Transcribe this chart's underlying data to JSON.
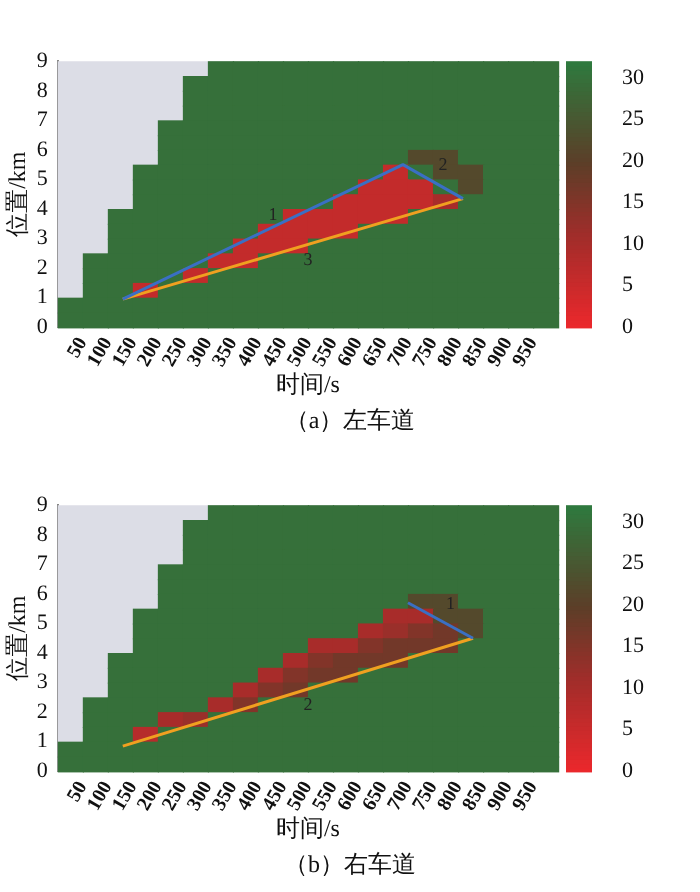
{
  "chart_data": [
    {
      "type": "heatmap",
      "title": "（a）左车道",
      "xlabel": "时间/s",
      "ylabel": "位置/km",
      "xlim": [
        0,
        1000
      ],
      "xticks": [
        50,
        100,
        150,
        200,
        250,
        300,
        350,
        400,
        450,
        500,
        550,
        600,
        650,
        700,
        750,
        800,
        850,
        900,
        950
      ],
      "ylim": [
        0,
        9
      ],
      "yticks": [
        0,
        1,
        2,
        3,
        4,
        5,
        6,
        7,
        8,
        9
      ],
      "clim": [
        0,
        32
      ],
      "cticks": [
        0,
        5,
        10,
        15,
        20,
        25,
        30
      ],
      "cells": [
        [
          null,
          null,
          null,
          null,
          null,
          null,
          30,
          30,
          30,
          30,
          30,
          30,
          30,
          30,
          30,
          30,
          30,
          30,
          30,
          30
        ],
        [
          null,
          null,
          null,
          null,
          null,
          30,
          30,
          30,
          30,
          30,
          30,
          30,
          30,
          30,
          30,
          30,
          30,
          30,
          30,
          30
        ],
        [
          null,
          null,
          null,
          null,
          null,
          30,
          30,
          30,
          30,
          30,
          30,
          30,
          30,
          30,
          30,
          30,
          30,
          30,
          30,
          30
        ],
        [
          null,
          null,
          null,
          null,
          null,
          30,
          30,
          30,
          30,
          30,
          30,
          30,
          30,
          30,
          30,
          30,
          30,
          30,
          30,
          30
        ],
        [
          null,
          null,
          null,
          null,
          30,
          30,
          30,
          30,
          30,
          30,
          30,
          30,
          30,
          30,
          30,
          30,
          30,
          30,
          30,
          30
        ],
        [
          null,
          null,
          null,
          null,
          30,
          30,
          30,
          30,
          30,
          30,
          30,
          30,
          30,
          30,
          30,
          30,
          30,
          30,
          30,
          30
        ],
        [
          null,
          null,
          null,
          null,
          30,
          30,
          30,
          30,
          30,
          30,
          30,
          30,
          30,
          30,
          22,
          22,
          30,
          30,
          30,
          30
        ],
        [
          null,
          null,
          null,
          30,
          30,
          30,
          30,
          30,
          30,
          30,
          30,
          30,
          30,
          6,
          30,
          22,
          22,
          30,
          30,
          30
        ],
        [
          null,
          null,
          null,
          30,
          30,
          30,
          30,
          30,
          30,
          30,
          30,
          30,
          6,
          6,
          6,
          30,
          22,
          30,
          30,
          30
        ],
        [
          null,
          null,
          null,
          30,
          30,
          30,
          30,
          30,
          30,
          30,
          30,
          6,
          6,
          6,
          6,
          10,
          30,
          30,
          30,
          30
        ],
        [
          null,
          null,
          30,
          30,
          30,
          30,
          30,
          30,
          30,
          6,
          6,
          6,
          6,
          6,
          30,
          30,
          30,
          30,
          30,
          30
        ],
        [
          null,
          null,
          30,
          30,
          30,
          30,
          30,
          30,
          6,
          6,
          6,
          6,
          30,
          30,
          30,
          30,
          30,
          30,
          30,
          30
        ],
        [
          null,
          null,
          30,
          30,
          30,
          30,
          30,
          6,
          6,
          6,
          30,
          30,
          30,
          30,
          30,
          30,
          30,
          30,
          30,
          30
        ],
        [
          null,
          30,
          30,
          30,
          30,
          30,
          6,
          6,
          30,
          30,
          30,
          30,
          30,
          30,
          30,
          30,
          30,
          30,
          30,
          30
        ],
        [
          null,
          30,
          30,
          30,
          30,
          6,
          30,
          30,
          30,
          30,
          30,
          30,
          30,
          30,
          30,
          30,
          30,
          30,
          30,
          30
        ],
        [
          null,
          30,
          30,
          6,
          30,
          30,
          30,
          30,
          30,
          30,
          30,
          30,
          30,
          30,
          30,
          30,
          30,
          30,
          30,
          30
        ],
        [
          30,
          30,
          30,
          30,
          30,
          30,
          30,
          30,
          30,
          30,
          30,
          30,
          30,
          30,
          30,
          30,
          30,
          30,
          30,
          30
        ],
        [
          30,
          30,
          30,
          30,
          30,
          30,
          30,
          30,
          30,
          30,
          30,
          30,
          30,
          30,
          30,
          30,
          30,
          30,
          30,
          30
        ]
      ],
      "series": [
        {
          "type": "line",
          "color": "#3a6fc4",
          "x": [
            130,
            690,
            810
          ],
          "values": [
            0.95,
            5.5,
            4.35
          ]
        },
        {
          "type": "line",
          "color": "#f0a020",
          "x": [
            130,
            810
          ],
          "values": [
            0.95,
            4.35
          ]
        }
      ],
      "annotations": [
        {
          "text": "1",
          "x": 410,
          "y": 3.23
        },
        {
          "text": "2",
          "x": 750,
          "y": 4.93
        },
        {
          "text": "3",
          "x": 500,
          "y": 2.8
        }
      ]
    },
    {
      "type": "heatmap",
      "title": "（b）右车道",
      "xlabel": "时间/s",
      "ylabel": "位置/km",
      "xlim": [
        0,
        1000
      ],
      "xticks": [
        50,
        100,
        150,
        200,
        250,
        300,
        350,
        400,
        450,
        500,
        550,
        600,
        650,
        700,
        750,
        800,
        850,
        900,
        950
      ],
      "ylim": [
        0,
        9
      ],
      "yticks": [
        0,
        1,
        2,
        3,
        4,
        5,
        6,
        7,
        8,
        9
      ],
      "clim": [
        0,
        32
      ],
      "cticks": [
        0,
        5,
        10,
        15,
        20,
        25,
        30
      ],
      "cells": [
        [
          null,
          null,
          null,
          null,
          null,
          null,
          30,
          30,
          30,
          30,
          30,
          30,
          30,
          30,
          30,
          30,
          30,
          30,
          30,
          30
        ],
        [
          null,
          null,
          null,
          null,
          null,
          30,
          30,
          30,
          30,
          30,
          30,
          30,
          30,
          30,
          30,
          30,
          30,
          30,
          30,
          30
        ],
        [
          null,
          null,
          null,
          null,
          null,
          30,
          30,
          30,
          30,
          30,
          30,
          30,
          30,
          30,
          30,
          30,
          30,
          30,
          30,
          30
        ],
        [
          null,
          null,
          null,
          null,
          null,
          30,
          30,
          30,
          30,
          30,
          30,
          30,
          30,
          30,
          30,
          30,
          30,
          30,
          30,
          30
        ],
        [
          null,
          null,
          null,
          null,
          30,
          30,
          30,
          30,
          30,
          30,
          30,
          30,
          30,
          30,
          30,
          30,
          30,
          30,
          30,
          30
        ],
        [
          null,
          null,
          null,
          null,
          30,
          30,
          30,
          30,
          30,
          30,
          30,
          30,
          30,
          30,
          30,
          30,
          30,
          30,
          30,
          30
        ],
        [
          null,
          null,
          null,
          null,
          30,
          30,
          30,
          30,
          30,
          30,
          30,
          30,
          30,
          30,
          22,
          22,
          30,
          30,
          30,
          30
        ],
        [
          null,
          null,
          null,
          30,
          30,
          30,
          30,
          30,
          30,
          30,
          30,
          30,
          30,
          10,
          10,
          22,
          22,
          30,
          30,
          30
        ],
        [
          null,
          null,
          null,
          30,
          30,
          30,
          30,
          30,
          30,
          30,
          30,
          30,
          10,
          12,
          15,
          17,
          22,
          30,
          30,
          30
        ],
        [
          null,
          null,
          null,
          30,
          30,
          30,
          30,
          30,
          30,
          30,
          10,
          10,
          15,
          17,
          17,
          17,
          30,
          30,
          30,
          30
        ],
        [
          null,
          null,
          30,
          30,
          30,
          30,
          30,
          30,
          30,
          10,
          15,
          17,
          17,
          17,
          30,
          30,
          30,
          30,
          30,
          30
        ],
        [
          null,
          null,
          30,
          30,
          30,
          30,
          30,
          30,
          10,
          15,
          17,
          17,
          30,
          30,
          30,
          30,
          30,
          30,
          30,
          30
        ],
        [
          null,
          null,
          30,
          30,
          30,
          30,
          30,
          10,
          15,
          17,
          30,
          30,
          30,
          30,
          30,
          30,
          30,
          30,
          30,
          30
        ],
        [
          null,
          30,
          30,
          30,
          30,
          30,
          10,
          15,
          30,
          30,
          30,
          30,
          30,
          30,
          30,
          30,
          30,
          30,
          30,
          30
        ],
        [
          null,
          30,
          30,
          30,
          10,
          12,
          30,
          30,
          30,
          30,
          30,
          30,
          30,
          30,
          30,
          30,
          30,
          30,
          30,
          30
        ],
        [
          null,
          30,
          30,
          8,
          30,
          30,
          30,
          30,
          30,
          30,
          30,
          30,
          30,
          30,
          30,
          30,
          30,
          30,
          30,
          30
        ],
        [
          30,
          30,
          30,
          30,
          30,
          30,
          30,
          30,
          30,
          30,
          30,
          30,
          30,
          30,
          30,
          30,
          30,
          30,
          30,
          30
        ],
        [
          30,
          30,
          30,
          30,
          30,
          30,
          30,
          30,
          30,
          30,
          30,
          30,
          30,
          30,
          30,
          30,
          30,
          30,
          30,
          30
        ]
      ],
      "series": [
        {
          "type": "line",
          "color": "#3a6fc4",
          "x": [
            700,
            830
          ],
          "values": [
            5.7,
            4.5
          ]
        },
        {
          "type": "line",
          "color": "#f0a020",
          "x": [
            130,
            830
          ],
          "values": [
            0.85,
            4.5
          ]
        }
      ],
      "annotations": [
        {
          "text": "1",
          "x": 765,
          "y": 5.1
        },
        {
          "text": "2",
          "x": 500,
          "y": 2.78
        }
      ]
    }
  ]
}
